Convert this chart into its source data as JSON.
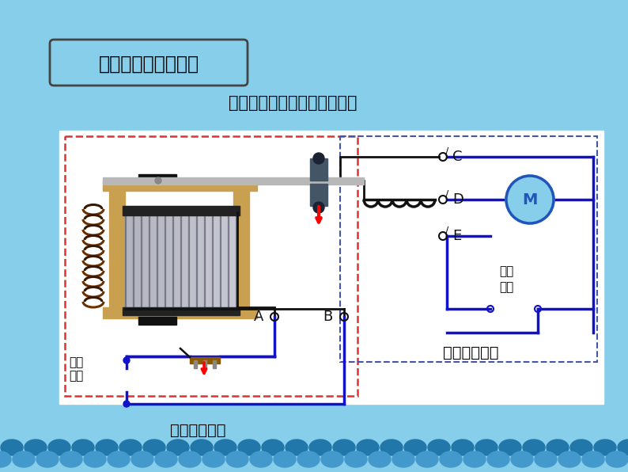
{
  "bg_color": "#87CEEB",
  "title_text": "一、认识电磁继电器",
  "subtitle_text": "想一想：电磁继电器的原理？",
  "label_low_circuit": "低压控制电路",
  "label_high_circuit": "高压工作电路",
  "label_low_power_1": "低压",
  "label_low_power_2": "电源",
  "label_high_power_1": "高压",
  "label_high_power_2": "电源",
  "wave_color1": "#4499CC",
  "wave_color2": "#2277AA",
  "diagram_bg": "#DAEEF8",
  "white_panel": "#FFFFFF",
  "red_dashed": "#DD3333",
  "blue_wire": "#1111CC",
  "black_wire": "#111111",
  "coil_brown": "#7B3F00",
  "wood_color": "#C8A050",
  "iron_gray": "#A8B0BC",
  "iron_dark": "#222222",
  "motor_blue": "#2255BB",
  "contact_dark": "#333344"
}
